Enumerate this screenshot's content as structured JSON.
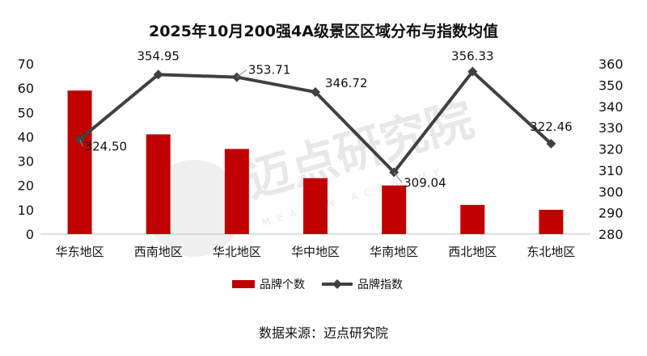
{
  "chart_data": {
    "type": "bar+line",
    "title": "2025年10月200强4A级景区区域分布与指数均值",
    "categories": [
      "华东地区",
      "西南地区",
      "华北地区",
      "华中地区",
      "华南地区",
      "西北地区",
      "东北地区"
    ],
    "series": [
      {
        "name": "品牌个数",
        "type": "bar",
        "axis": "left",
        "color": "#c00000",
        "values": [
          59,
          41,
          35,
          23,
          20,
          12,
          10
        ]
      },
      {
        "name": "品牌指数",
        "type": "line",
        "axis": "right",
        "color": "#404040",
        "values": [
          324.5,
          354.95,
          353.71,
          346.72,
          309.04,
          356.33,
          322.46
        ],
        "labels": [
          "324.50",
          "354.95",
          "353.71",
          "346.72",
          "309.04",
          "356.33",
          "322.46"
        ]
      }
    ],
    "y_left": {
      "min": 0,
      "max": 70,
      "step": 10,
      "ticks": [
        "0",
        "10",
        "20",
        "30",
        "40",
        "50",
        "60",
        "70"
      ]
    },
    "y_right": {
      "min": 280,
      "max": 360,
      "step": 10,
      "ticks": [
        "280",
        "290",
        "300",
        "310",
        "320",
        "330",
        "340",
        "350",
        "360"
      ]
    },
    "grid": false,
    "legend_position": "bottom"
  },
  "source_text": "数据来源：迈点研究院",
  "watermark": {
    "brand": "迈点研究院",
    "sub": "MEADIN ACADEMY"
  }
}
